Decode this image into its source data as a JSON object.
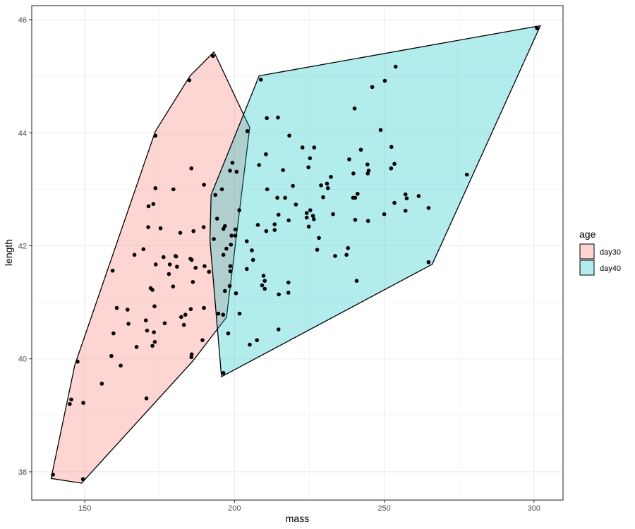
{
  "chart_data": {
    "type": "scatter",
    "title": "",
    "xlabel": "mass",
    "ylabel": "length",
    "xlim": [
      132.3,
      309.7
    ],
    "ylim": [
      37.5,
      46.25
    ],
    "x_ticks": [
      150,
      200,
      250,
      300
    ],
    "y_ticks": [
      38,
      40,
      42,
      44,
      46
    ],
    "grid": true,
    "legend": {
      "title": "age",
      "position": "right"
    },
    "series": [
      {
        "name": "day30",
        "fill": "#F8766D",
        "points": [
          [
            139.4,
            37.95
          ],
          [
            149.4,
            37.87
          ],
          [
            145.5,
            39.28
          ],
          [
            145,
            39.2
          ],
          [
            149.5,
            39.22
          ],
          [
            147.6,
            39.95
          ],
          [
            155.7,
            39.56
          ],
          [
            170.6,
            39.3
          ],
          [
            158.9,
            40.05
          ],
          [
            162,
            39.88
          ],
          [
            159.6,
            40.45
          ],
          [
            164.6,
            40.62
          ],
          [
            160.7,
            40.9
          ],
          [
            164.3,
            40.87
          ],
          [
            159.3,
            41.56
          ],
          [
            173.3,
            40.93
          ],
          [
            172,
            41.25
          ],
          [
            172.6,
            41.22
          ],
          [
            176.7,
            40.63
          ],
          [
            172.6,
            40.23
          ],
          [
            173.4,
            40.3
          ],
          [
            173.1,
            40.47
          ],
          [
            170.8,
            40.5
          ],
          [
            170.4,
            40.68
          ],
          [
            167.3,
            40.21
          ],
          [
            182.2,
            40.74
          ],
          [
            183.1,
            40.6
          ],
          [
            183.6,
            40.78
          ],
          [
            185.4,
            40.88
          ],
          [
            185.6,
            40.03
          ],
          [
            185.7,
            40.08
          ],
          [
            189.3,
            40.33
          ],
          [
            189.8,
            40.9
          ],
          [
            194.6,
            40.8
          ],
          [
            196.2,
            40.78
          ],
          [
            179.5,
            41.28
          ],
          [
            178.1,
            41.5
          ],
          [
            180.8,
            41.63
          ],
          [
            178.4,
            41.67
          ],
          [
            180.5,
            41.81
          ],
          [
            180.3,
            41.82
          ],
          [
            176.3,
            41.8
          ],
          [
            173.7,
            41.67
          ],
          [
            169.6,
            41.94
          ],
          [
            166.6,
            41.84
          ],
          [
            185.7,
            41.75
          ],
          [
            187,
            41.61
          ],
          [
            186.1,
            41.36
          ],
          [
            185.3,
            41.77
          ],
          [
            181.9,
            42.23
          ],
          [
            175.3,
            42.31
          ],
          [
            171.2,
            42.33
          ],
          [
            172.9,
            42.74
          ],
          [
            171.3,
            42.7
          ],
          [
            173.6,
            43.02
          ],
          [
            179.6,
            43
          ],
          [
            185.6,
            43.37
          ],
          [
            186.3,
            42.26
          ],
          [
            189.7,
            42.33
          ],
          [
            189.8,
            43.08
          ],
          [
            190,
            41.64
          ],
          [
            191.5,
            41.54
          ],
          [
            173.6,
            43.95
          ],
          [
            184.9,
            44.93
          ],
          [
            192.8,
            45.36
          ],
          [
            204.3,
            44.03
          ]
        ]
      },
      {
        "name": "day40",
        "fill": "#00BFC4",
        "points": [
          [
            196.3,
            39.75
          ],
          [
            197.9,
            40.45
          ],
          [
            205.1,
            40.25
          ],
          [
            207.5,
            40.33
          ],
          [
            201.7,
            40.8
          ],
          [
            209.2,
            41.3
          ],
          [
            210.1,
            41.24
          ],
          [
            210.1,
            41.38
          ],
          [
            209.7,
            41.47
          ],
          [
            214.8,
            41.14
          ],
          [
            218,
            41.17
          ],
          [
            218,
            41.35
          ],
          [
            214.7,
            40.52
          ],
          [
            196.8,
            41.2
          ],
          [
            198.4,
            41.29
          ],
          [
            200.5,
            41.16
          ],
          [
            198.6,
            41.55
          ],
          [
            198.6,
            41.64
          ],
          [
            204.1,
            41.59
          ],
          [
            206.2,
            41.75
          ],
          [
            205.8,
            41.92
          ],
          [
            196.3,
            41.84
          ],
          [
            197.3,
            41.95
          ],
          [
            198.8,
            42.02
          ],
          [
            199,
            42.18
          ],
          [
            200.3,
            42.18
          ],
          [
            200.3,
            42.29
          ],
          [
            196.3,
            42.3
          ],
          [
            196.8,
            42.35
          ],
          [
            193.1,
            42.12
          ],
          [
            194.2,
            42.48
          ],
          [
            201.6,
            42.63
          ],
          [
            204.1,
            42.08
          ],
          [
            207.8,
            42.37
          ],
          [
            210.6,
            42.26
          ],
          [
            213.4,
            42.28
          ],
          [
            213.4,
            42.38
          ],
          [
            214.7,
            42.55
          ],
          [
            218.1,
            42.45
          ],
          [
            216.9,
            42.85
          ],
          [
            214.3,
            42.85
          ],
          [
            210.9,
            43
          ],
          [
            199.3,
            43.47
          ],
          [
            200.7,
            43.31
          ],
          [
            198.5,
            43.33
          ],
          [
            195.8,
            43
          ],
          [
            193.6,
            42.9
          ],
          [
            208.2,
            43.43
          ],
          [
            210.5,
            43.62
          ],
          [
            216.2,
            43.34
          ],
          [
            219.5,
            43.06
          ],
          [
            220.5,
            42.73
          ],
          [
            224.1,
            42.58
          ],
          [
            225.3,
            42.63
          ],
          [
            226.2,
            42.53
          ],
          [
            226.5,
            42.47
          ],
          [
            224.1,
            42.5
          ],
          [
            224.8,
            42.34
          ],
          [
            228.2,
            42.14
          ],
          [
            227.6,
            41.93
          ],
          [
            225.2,
            43.55
          ],
          [
            224.7,
            43.39
          ],
          [
            226.6,
            43.74
          ],
          [
            222.7,
            43.74
          ],
          [
            218.3,
            43.95
          ],
          [
            214.5,
            44.27
          ],
          [
            210.8,
            44.26
          ],
          [
            208.8,
            44.94
          ],
          [
            228.9,
            43.07
          ],
          [
            230.9,
            43.1
          ],
          [
            231.2,
            43.02
          ],
          [
            232.2,
            43.22
          ],
          [
            229.6,
            42.86
          ],
          [
            232.9,
            42.56
          ],
          [
            233.6,
            41.82
          ],
          [
            237.4,
            41.84
          ],
          [
            237.9,
            41.96
          ],
          [
            238.3,
            43.53
          ],
          [
            239.6,
            42.85
          ],
          [
            239.7,
            43.28
          ],
          [
            240.3,
            42.85
          ],
          [
            240.3,
            42.46
          ],
          [
            241.1,
            42.92
          ],
          [
            242.2,
            43.7
          ],
          [
            244.4,
            43.44
          ],
          [
            244.5,
            43.28
          ],
          [
            244.8,
            43.33
          ],
          [
            244.6,
            42.44
          ],
          [
            240.8,
            41.38
          ],
          [
            240.1,
            44.43
          ],
          [
            246,
            44.81
          ],
          [
            250.2,
            44.92
          ],
          [
            248.8,
            44.05
          ],
          [
            252.4,
            43.75
          ],
          [
            252.3,
            43.37
          ],
          [
            253.4,
            43.45
          ],
          [
            250,
            42.56
          ],
          [
            253.4,
            42.76
          ],
          [
            257.1,
            42.91
          ],
          [
            257.1,
            42.62
          ],
          [
            257.5,
            42.84
          ],
          [
            261.5,
            42.88
          ],
          [
            264.8,
            42.67
          ],
          [
            264.8,
            41.71
          ],
          [
            253.8,
            45.17
          ],
          [
            277.6,
            43.26
          ],
          [
            301,
            45.85
          ]
        ]
      }
    ]
  }
}
